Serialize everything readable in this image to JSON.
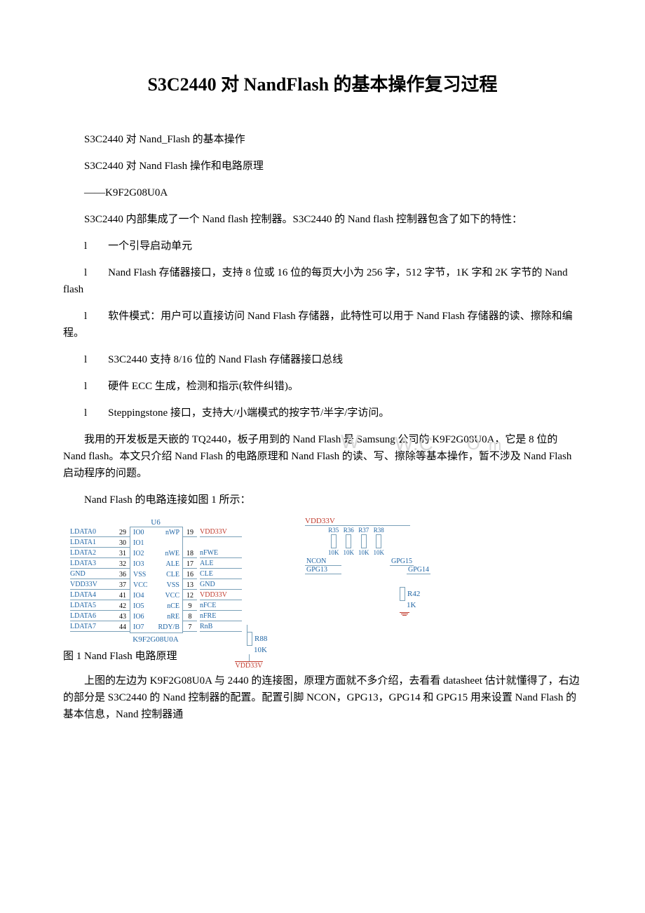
{
  "title": "S3C2440 对 NandFlash 的基本操作复习过程",
  "p1": "S3C2440 对 Nand_Flash 的基本操作",
  "p2": "S3C2440 对 Nand Flash 操作和电路原理",
  "p3": "——K9F2G08U0A",
  "p4": "S3C2440 内部集成了一个 Nand flash 控制器。S3C2440 的 Nand flash 控制器包含了如下的特性：",
  "p5": "l　　一个引导启动单元",
  "p6": "l　　Nand Flash 存储器接口，支持 8 位或 16 位的每页大小为 256 字，512 字节，1K 字和 2K 字节的 Nand flash",
  "p7": "l　　软件模式：用户可以直接访问 Nand Flash 存储器，此特性可以用于 Nand Flash 存储器的读、擦除和编程。",
  "p8": "l　　S3C2440 支持 8/16 位的 Nand Flash 存储器接口总线",
  "p9": "l　　硬件 ECC 生成，检测和指示(软件纠错)。",
  "p10": "l　　Steppingstone 接口，支持大/小端模式的按字节/半字/字访问。",
  "p11": "我用的开发板是天嵌的 TQ2440，板子用到的 Nand Flash 是 Samsung 公司的 K9F2G08U0A，它是 8 位的 Nand flash。本文只介绍 Nand Flash 的电路原理和 Nand Flash 的读、写、擦除等基本操作，暂不涉及 Nand Flash 启动程序的问题。",
  "p12": "Nand Flash 的电路连接如图 1 所示：",
  "caption": "图 1 Nand Flash 电路原理",
  "p13": "上图的左边为 K9F2G08U0A 与 2440 的连接图，原理方面就不多介绍，去看看 datasheet 估计就懂得了，右边的部分是 S3C2440 的 Nand 控制器的配置。配置引脚 NCON，GPG13，GPG14 和 GPG15 用来设置 Nand Flash 的基本信息，Nand 控制器通",
  "watermark_a": "W",
  "watermark_b": "W.C",
  "watermark_c": "O",
  "watermark_d": "m",
  "schem": {
    "u6": "U6",
    "left_nets": [
      "LDATA0",
      "LDATA1",
      "LDATA2",
      "LDATA3",
      "GND",
      "VDD33V",
      "LDATA4",
      "LDATA5",
      "LDATA6",
      "LDATA7"
    ],
    "left_pins": [
      "29",
      "30",
      "31",
      "32",
      "36",
      "37",
      "41",
      "42",
      "43",
      "44"
    ],
    "chip_left": [
      "IO0",
      "IO1",
      "IO2",
      "IO3",
      "VSS",
      "VCC",
      "IO4",
      "IO5",
      "IO6",
      "IO7"
    ],
    "chip_right": [
      "nWP",
      "",
      "nWE",
      "ALE",
      "CLE",
      "VSS",
      "VCC",
      "nCE",
      "nRE",
      "RDY/B"
    ],
    "right_pins": [
      "19",
      "",
      "18",
      "17",
      "16",
      "13",
      "12",
      "9",
      "8",
      "7"
    ],
    "right_nets": [
      "VDD33V",
      "",
      "nFWE",
      "ALE",
      "CLE",
      "GND",
      "VDD33V",
      "nFCE",
      "nFRE",
      "RnB"
    ],
    "part": "K9F2G08U0A",
    "r88": "R88",
    "r88val": "10K",
    "vdd_bottom": "VDD33V",
    "vdd_top": "VDD33V",
    "res_labels": [
      "R35",
      "R36",
      "R37",
      "R38"
    ],
    "res_vals": [
      "10K",
      "10K",
      "10K",
      "10K"
    ],
    "ncon": "NCON",
    "gpg13": "GPG13",
    "gpg15": "GPG15",
    "gpg14": "GPG14",
    "r42": "R42",
    "r42val": "1K"
  }
}
